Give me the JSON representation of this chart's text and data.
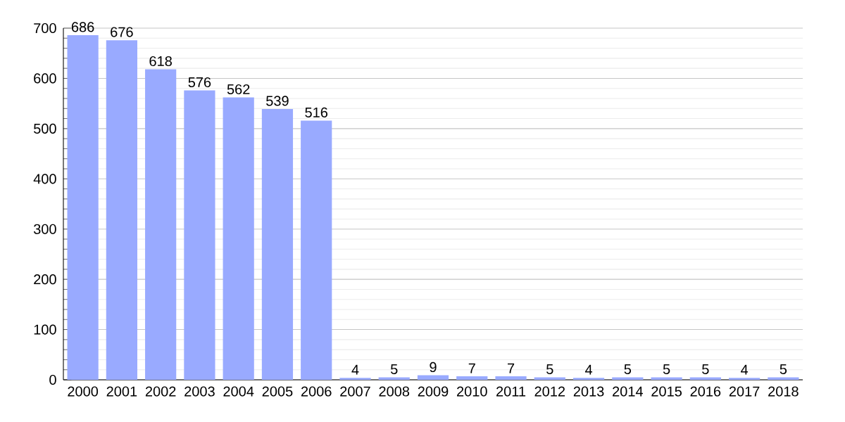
{
  "chart_data": {
    "type": "bar",
    "categories": [
      "2000",
      "2001",
      "2002",
      "2003",
      "2004",
      "2005",
      "2006",
      "2007",
      "2008",
      "2009",
      "2010",
      "2011",
      "2012",
      "2013",
      "2014",
      "2015",
      "2016",
      "2017",
      "2018"
    ],
    "values": [
      686,
      676,
      618,
      576,
      562,
      539,
      516,
      4,
      5,
      9,
      7,
      7,
      5,
      4,
      5,
      5,
      5,
      4,
      5
    ],
    "color": "#99aaff",
    "ylim": [
      0,
      700
    ],
    "yticks": [
      0,
      100,
      200,
      300,
      400,
      500,
      600,
      700
    ],
    "grid": "y",
    "data_labels": true
  }
}
